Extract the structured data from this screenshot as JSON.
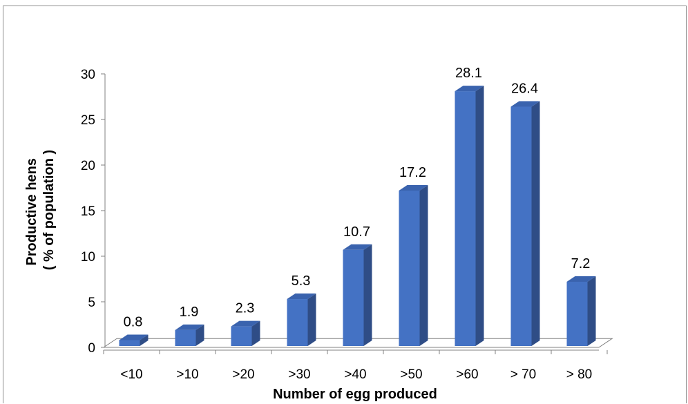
{
  "chart_data": {
    "type": "bar",
    "categories": [
      "<10",
      ">10",
      ">20",
      ">30",
      ">40",
      ">50",
      ">60",
      "> 70",
      "> 80"
    ],
    "values": [
      0.8,
      1.9,
      2.3,
      5.3,
      10.7,
      17.2,
      28.1,
      26.4,
      7.2
    ],
    "data_labels": [
      "0.8",
      "1.9",
      "2.3",
      "5.3",
      "10.7",
      "17.2",
      "28.1",
      "26.4",
      "7.2"
    ],
    "title": "",
    "xlabel": "Number of egg produced",
    "ylabel_line1": "Productive hens",
    "ylabel_line2": "( % of population )",
    "ylim": [
      0,
      30
    ],
    "yticks": [
      "0",
      "5",
      "10",
      "15",
      "20",
      "25",
      "30"
    ],
    "grid": false,
    "legend": "none",
    "style": "3d-column",
    "bar_color": "#4472C4",
    "bar_side_color": "#2F4D86",
    "bar_top_color": "#3A63AE"
  }
}
